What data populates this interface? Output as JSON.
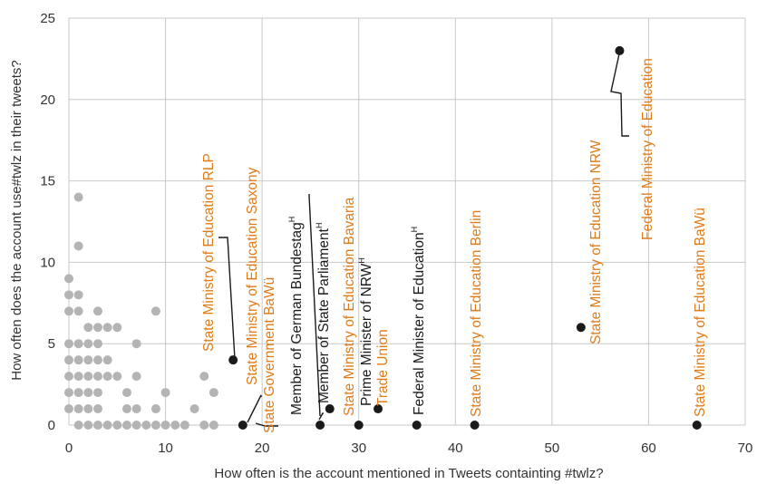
{
  "chart_data": {
    "type": "scatter",
    "title": "",
    "xlabel": "How often is the account mentioned in Tweets containting #twlz?",
    "ylabel": "How often does the account use#twlz in their tweets?",
    "xlim": [
      0,
      70
    ],
    "ylim": [
      0,
      25
    ],
    "xticks": [
      0,
      10,
      20,
      30,
      40,
      50,
      60,
      70
    ],
    "yticks": [
      0,
      5,
      10,
      15,
      20,
      25
    ],
    "grid": true,
    "colors": {
      "gray": "#b4b4b4",
      "black": "#1a1a1a",
      "orange": "#e07b1a",
      "grid": "#c8c8c8",
      "axis_text": "#333333"
    },
    "series": [
      {
        "points": [
          [
            0,
            9
          ],
          [
            0,
            8
          ],
          [
            0,
            7
          ],
          [
            0,
            5
          ],
          [
            0,
            4
          ],
          [
            0,
            3
          ],
          [
            0,
            2
          ],
          [
            0,
            1
          ],
          [
            1,
            14
          ],
          [
            1,
            11
          ],
          [
            1,
            8
          ],
          [
            1,
            7
          ],
          [
            1,
            5
          ],
          [
            1,
            4
          ],
          [
            1,
            3
          ],
          [
            1,
            2
          ],
          [
            1,
            1
          ],
          [
            1,
            0
          ],
          [
            2,
            6
          ],
          [
            2,
            5
          ],
          [
            2,
            4
          ],
          [
            2,
            3
          ],
          [
            2,
            2
          ],
          [
            2,
            1
          ],
          [
            2,
            0
          ],
          [
            3,
            7
          ],
          [
            3,
            6
          ],
          [
            3,
            5
          ],
          [
            3,
            4
          ],
          [
            3,
            3
          ],
          [
            3,
            2
          ],
          [
            3,
            1
          ],
          [
            3,
            0
          ],
          [
            4,
            6
          ],
          [
            4,
            4
          ],
          [
            4,
            3
          ],
          [
            4,
            0
          ],
          [
            5,
            6
          ],
          [
            5,
            3
          ],
          [
            5,
            0
          ],
          [
            6,
            2
          ],
          [
            6,
            1
          ],
          [
            6,
            0
          ],
          [
            7,
            5
          ],
          [
            7,
            3
          ],
          [
            7,
            1
          ],
          [
            7,
            0
          ],
          [
            8,
            0
          ],
          [
            9,
            7
          ],
          [
            9,
            1
          ],
          [
            9,
            0
          ],
          [
            10,
            2
          ],
          [
            10,
            0
          ],
          [
            11,
            0
          ],
          [
            12,
            0
          ],
          [
            13,
            1
          ],
          [
            14,
            3
          ],
          [
            14,
            0
          ],
          [
            15,
            2
          ],
          [
            15,
            0
          ]
        ]
      },
      {
        "points": [
          [
            17,
            4
          ],
          [
            18,
            0
          ],
          [
            26,
            0
          ],
          [
            27,
            1
          ],
          [
            30,
            0
          ],
          [
            32,
            1
          ],
          [
            36,
            0
          ],
          [
            42,
            0
          ],
          [
            53,
            6
          ],
          [
            57,
            23
          ],
          [
            65,
            0
          ]
        ]
      }
    ],
    "annotations": [
      {
        "text": "State Ministry of Education RLP",
        "color": "orange"
      },
      {
        "text": "State Ministry of Education Saxony",
        "color": "orange"
      },
      {
        "text": "State Government BaWü",
        "color": "orange"
      },
      {
        "text": "Member of German Bundestag",
        "sup": "H",
        "color": "black"
      },
      {
        "text": "Member of State Parliament",
        "sup": "H",
        "color": "black"
      },
      {
        "text": "State Ministry of Education Bavaria",
        "color": "orange"
      },
      {
        "text": "Prime Minister of NRW",
        "sup": "H",
        "color": "black"
      },
      {
        "text": "Trade Union",
        "color": "orange"
      },
      {
        "text": "Federal Minister of Education",
        "sup": "H",
        "color": "black"
      },
      {
        "text": "State Ministry of Education Berlin",
        "color": "orange"
      },
      {
        "text": "State Ministry of Education NRW",
        "color": "orange"
      },
      {
        "text": "Federal Ministry of Education",
        "color": "orange"
      },
      {
        "text": "State Ministry of Education BaWü",
        "color": "orange"
      }
    ]
  }
}
